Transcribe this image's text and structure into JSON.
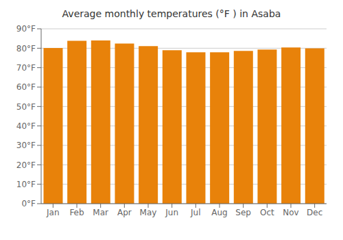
{
  "chart_data": {
    "type": "bar",
    "title": "Average monthly temperatures (°F ) in Asaba",
    "categories": [
      "Jan",
      "Feb",
      "Mar",
      "Apr",
      "May",
      "Jun",
      "Jul",
      "Aug",
      "Sep",
      "Oct",
      "Nov",
      "Dec"
    ],
    "values": [
      80.1,
      83.8,
      84.0,
      82.4,
      81.1,
      79.0,
      77.9,
      77.9,
      78.6,
      79.3,
      80.4,
      79.9
    ],
    "color": "#E8820A",
    "ylim": [
      0,
      90
    ],
    "yticks": [
      {
        "value": 0,
        "label": "0°F"
      },
      {
        "value": 10,
        "label": "10°F"
      },
      {
        "value": 20,
        "label": "20°F"
      },
      {
        "value": 30,
        "label": "30°F"
      },
      {
        "value": 40,
        "label": "40°F"
      },
      {
        "value": 50,
        "label": "50°F"
      },
      {
        "value": 60,
        "label": "60°F"
      },
      {
        "value": 70,
        "label": "70°F"
      },
      {
        "value": 80,
        "label": "80°F"
      },
      {
        "value": 90,
        "label": "90°F"
      }
    ],
    "grid": true
  }
}
